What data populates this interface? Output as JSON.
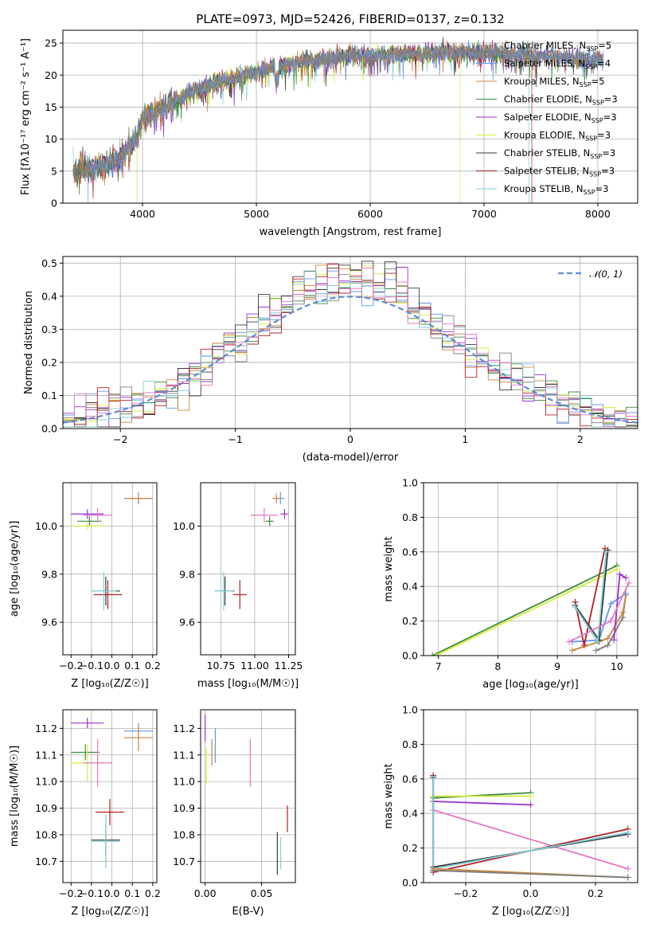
{
  "figure": {
    "title": "PLATE=0973, MJD=52426, FIBERID=0137, z=0.132"
  },
  "colors": {
    "Chabrier MILES": "#7f7f7f",
    "Salpeter MILES": "#6495ed",
    "Kroupa MILES": "#cd853f",
    "Chabrier ELODIE": "#3c8c3c",
    "Salpeter ELODIE": "#9932cc",
    "Kroupa ELODIE": "#d4ee3c",
    "Chabrier STELIB": "#3a3a3a",
    "Salpeter STELIB": "#b22222",
    "Kroupa STELIB": "#7ecfd8"
  },
  "chart_data": [
    {
      "id": "spectrum",
      "type": "line",
      "xlabel": "wavelength [Angstrom, rest frame]",
      "ylabel": "Flux [fλ10⁻¹⁷ erg cm⁻² s⁻¹ A⁻¹]",
      "xlim": [
        3300,
        8350
      ],
      "ylim": [
        0,
        27
      ],
      "xticks": [
        4000,
        5000,
        6000,
        7000,
        8000
      ],
      "yticks": [
        0,
        5,
        10,
        15,
        20,
        25
      ],
      "legend_position": "upper right",
      "legend": [
        "Chabrier MILES, N_SSP=5",
        "Salpeter MILES, N_SSP=4",
        "Kroupa MILES, N_SSP=5",
        "Chabrier ELODIE, N_SSP=3",
        "Salpeter ELODIE, N_SSP=3",
        "Kroupa ELODIE, N_SSP=3",
        "Chabrier STELIB, N_SSP=3",
        "Salpeter STELIB, N_SSP=3",
        "Kroupa STELIB, N_SSP=3"
      ],
      "continuum_anchor": {
        "x": [
          3380,
          3600,
          3800,
          3950,
          4000,
          4200,
          4400,
          4600,
          4800,
          5000,
          5200,
          5500,
          5800,
          6000,
          6300,
          6500,
          6800,
          7000,
          7200,
          7500,
          7800,
          8050
        ],
        "y": [
          5,
          5.5,
          7,
          10,
          13,
          15,
          17,
          18.5,
          19.5,
          20.5,
          21.5,
          22.3,
          23,
          23,
          23.3,
          23.5,
          23.6,
          23.5,
          23.3,
          23,
          22.6,
          22.3
        ]
      },
      "gaps": [
        {
          "series": "Kroupa ELODIE",
          "x": 3930
        },
        {
          "series": "Salpeter MILES",
          "x": 3600
        },
        {
          "series": "Kroupa ELODIE",
          "x": 6800
        },
        {
          "series": "Salpeter STELIB",
          "x": 7420
        },
        {
          "series": "Kroupa STELIB",
          "x": 7400
        }
      ]
    },
    {
      "id": "residuals",
      "type": "step histogram",
      "xlabel": "(data-model)/error",
      "ylabel": "Normed distribution",
      "xlim": [
        -2.5,
        2.5
      ],
      "ylim": [
        0,
        0.52
      ],
      "xticks": [
        -2,
        -1,
        0,
        1,
        2
      ],
      "yticks": [
        0.0,
        0.1,
        0.2,
        0.3,
        0.4,
        0.5
      ],
      "legend_position": "upper right",
      "legend": [
        "𝒩(0, 1)"
      ],
      "bins": 50,
      "gaussian": {
        "mean": 0,
        "sigma": 1,
        "color": "#5b8ed6"
      }
    },
    {
      "id": "age_vs_Z",
      "type": "scatter with error bars",
      "xlabel": "Z [log₁₀(Z/Z☉)]",
      "ylabel": "age  [log₁₀(age/yr)]",
      "xlim": [
        -0.24,
        0.22
      ],
      "ylim": [
        9.465,
        10.18
      ],
      "xticks": [
        -0.2,
        -0.1,
        0.0,
        0.1,
        0.2
      ],
      "yticks": [
        9.6,
        9.8,
        10.0
      ],
      "points": [
        {
          "s": "Salpeter MILES",
          "x": 0.13,
          "y": 10.115,
          "ex": 0.07,
          "ey": 0.025
        },
        {
          "s": "Kroupa MILES",
          "x": 0.13,
          "y": 10.115,
          "ex": 0.06,
          "ey": 0.02
        },
        {
          "s": "Salpeter ELODIE",
          "x": -0.12,
          "y": 10.05,
          "ex": 0.08,
          "ey": 0.02
        },
        {
          "s": "Chabrier ELODIE",
          "x": -0.11,
          "y": 10.02,
          "ex": 0.06,
          "ey": 0.02
        },
        {
          "s": "Kroupa ELODIE",
          "x": -0.12,
          "y": 10.0,
          "ex": 0.08,
          "ey": 0.015
        },
        {
          "s": "hotpink",
          "x": -0.07,
          "y": 10.045,
          "ex": 0.07,
          "ey": 0.03
        },
        {
          "s": "Salpeter STELIB",
          "x": -0.02,
          "y": 9.715,
          "ex": 0.07,
          "ey": 0.06
        },
        {
          "s": "Chabrier STELIB",
          "x": -0.03,
          "y": 9.73,
          "ex": 0.07,
          "ey": 0.06
        },
        {
          "s": "Kroupa STELIB",
          "x": -0.04,
          "y": 9.73,
          "ex": 0.06,
          "ey": 0.08
        }
      ]
    },
    {
      "id": "age_vs_mass",
      "type": "scatter with error bars",
      "xlabel": "mass [log₁₀(M/M☉)]",
      "ylabel": "",
      "xlim": [
        10.6,
        11.3
      ],
      "ylim": [
        9.465,
        10.18
      ],
      "xticks": [
        10.75,
        11.0,
        11.25
      ],
      "yticks": [
        9.6,
        9.8,
        10.0
      ],
      "points": [
        {
          "s": "Salpeter MILES",
          "x": 11.19,
          "y": 10.115,
          "ex": 0.03,
          "ey": 0.025
        },
        {
          "s": "Kroupa MILES",
          "x": 11.16,
          "y": 10.115,
          "ex": 0.03,
          "ey": 0.02
        },
        {
          "s": "Salpeter ELODIE",
          "x": 11.22,
          "y": 10.05,
          "ex": 0.03,
          "ey": 0.02
        },
        {
          "s": "Chabrier ELODIE",
          "x": 11.11,
          "y": 10.02,
          "ex": 0.03,
          "ey": 0.02
        },
        {
          "s": "hotpink",
          "x": 11.07,
          "y": 10.045,
          "ex": 0.1,
          "ey": 0.03
        },
        {
          "s": "Salpeter STELIB",
          "x": 10.89,
          "y": 9.715,
          "ex": 0.05,
          "ey": 0.06
        },
        {
          "s": "Chabrier STELIB",
          "x": 10.78,
          "y": 9.73,
          "ex": 0.07,
          "ey": 0.06
        },
        {
          "s": "Kroupa STELIB",
          "x": 10.77,
          "y": 9.73,
          "ex": 0.07,
          "ey": 0.08
        }
      ]
    },
    {
      "id": "weight_vs_age",
      "type": "line",
      "xlabel": "age  [log₁₀(age/yr)]",
      "ylabel": "mass weight",
      "xlim": [
        6.75,
        10.35
      ],
      "ylim": [
        0,
        1.0
      ],
      "xticks": [
        7,
        8,
        9,
        10
      ],
      "yticks": [
        0.0,
        0.2,
        0.4,
        0.6,
        0.8,
        1.0
      ]
    },
    {
      "id": "mass_vs_Z",
      "type": "scatter with error bars",
      "xlabel": "Z [log₁₀(Z/Z☉)]",
      "ylabel": "mass [log₁₀(M/M☉)]",
      "xlim": [
        -0.24,
        0.22
      ],
      "ylim": [
        10.62,
        11.27
      ],
      "xticks": [
        -0.2,
        -0.1,
        0.0,
        0.1,
        0.2
      ],
      "yticks": [
        10.7,
        10.8,
        10.9,
        11.0,
        11.1,
        11.2
      ],
      "points": [
        {
          "s": "Salpeter ELODIE",
          "x": -0.12,
          "y": 11.22,
          "ex": 0.08,
          "ey": 0.02
        },
        {
          "s": "Salpeter MILES",
          "x": 0.13,
          "y": 11.19,
          "ex": 0.07,
          "ey": 0.03
        },
        {
          "s": "Kroupa MILES",
          "x": 0.13,
          "y": 11.165,
          "ex": 0.07,
          "ey": 0.05
        },
        {
          "s": "Chabrier ELODIE",
          "x": -0.13,
          "y": 11.11,
          "ex": 0.07,
          "ey": 0.03
        },
        {
          "s": "Kroupa ELODIE",
          "x": -0.12,
          "y": 11.07,
          "ex": 0.08,
          "ey": 0.07
        },
        {
          "s": "hotpink",
          "x": -0.07,
          "y": 11.07,
          "ex": 0.07,
          "ey": 0.09
        },
        {
          "s": "Salpeter STELIB",
          "x": -0.01,
          "y": 10.885,
          "ex": 0.07,
          "ey": 0.05
        },
        {
          "s": "Chabrier STELIB",
          "x": -0.03,
          "y": 10.78,
          "ex": 0.07,
          "ey": 0.06
        },
        {
          "s": "Kroupa STELIB",
          "x": -0.03,
          "y": 10.775,
          "ex": 0.07,
          "ey": 0.1
        }
      ]
    },
    {
      "id": "mass_vs_ebv",
      "type": "scatter with error bars",
      "xlabel": "E(B-V)",
      "ylabel": "",
      "xlim": [
        -0.004,
        0.08
      ],
      "ylim": [
        10.62,
        11.27
      ],
      "xticks": [
        0.0,
        0.05
      ],
      "yticks": [
        10.7,
        10.8,
        10.9,
        11.0,
        11.1,
        11.2
      ],
      "points": [
        {
          "s": "Salpeter ELODIE",
          "x": 0.0,
          "y": 11.2,
          "ex": 0,
          "ey": 0.05
        },
        {
          "s": "Salpeter MILES",
          "x": 0.009,
          "y": 11.135,
          "ex": 0,
          "ey": 0.065
        },
        {
          "s": "Kroupa MILES",
          "x": 0.006,
          "y": 11.11,
          "ex": 0,
          "ey": 0.05
        },
        {
          "s": "Kroupa ELODIE",
          "x": 0.001,
          "y": 11.06,
          "ex": 0,
          "ey": 0.07
        },
        {
          "s": "hotpink",
          "x": 0.04,
          "y": 11.07,
          "ex": 0,
          "ey": 0.09
        },
        {
          "s": "Salpeter STELIB",
          "x": 0.073,
          "y": 10.86,
          "ex": 0,
          "ey": 0.05
        },
        {
          "s": "Chabrier STELIB",
          "x": 0.064,
          "y": 10.73,
          "ex": 0,
          "ey": 0.08
        },
        {
          "s": "Kroupa STELIB",
          "x": 0.067,
          "y": 10.73,
          "ex": 0,
          "ey": 0.06
        }
      ]
    },
    {
      "id": "weight_vs_Z",
      "type": "line",
      "xlabel": "Z [log₁₀(Z/Z☉)]",
      "ylabel": "mass weight",
      "xlim": [
        -0.33,
        0.33
      ],
      "ylim": [
        0,
        1.0
      ],
      "xticks": [
        -0.2,
        0.0,
        0.2
      ],
      "yticks": [
        0.0,
        0.2,
        0.4,
        0.6,
        0.8,
        1.0
      ],
      "series": [
        {
          "name": "Chabrier ELODIE",
          "x": [
            -0.3,
            0.0
          ],
          "y": [
            0.49,
            0.52
          ]
        },
        {
          "name": "Kroupa ELODIE",
          "x": [
            -0.3,
            0.0
          ],
          "y": [
            0.5,
            0.5
          ]
        },
        {
          "name": "Salpeter ELODIE",
          "x": [
            -0.3,
            0.0
          ],
          "y": [
            0.47,
            0.45
          ]
        },
        {
          "name": "hotpink",
          "x": [
            -0.3,
            0.3
          ],
          "y": [
            0.42,
            0.08
          ]
        },
        {
          "name": "Salpeter STELIB",
          "x": [
            -0.3,
            -0.3,
            0.3
          ],
          "y": [
            0.62,
            0.06,
            0.31
          ]
        },
        {
          "name": "Chabrier STELIB",
          "x": [
            -0.3,
            -0.3,
            0.3
          ],
          "y": [
            0.61,
            0.09,
            0.28
          ]
        },
        {
          "name": "Kroupa STELIB",
          "x": [
            -0.3,
            -0.3,
            0.3
          ],
          "y": [
            0.6,
            0.08,
            0.29
          ]
        },
        {
          "name": "Kroupa MILES",
          "x": [
            -0.3,
            0.3
          ],
          "y": [
            0.08,
            0.03
          ]
        },
        {
          "name": "Chabrier MILES",
          "x": [
            -0.3,
            0.3
          ],
          "y": [
            0.07,
            0.03
          ]
        }
      ]
    }
  ]
}
